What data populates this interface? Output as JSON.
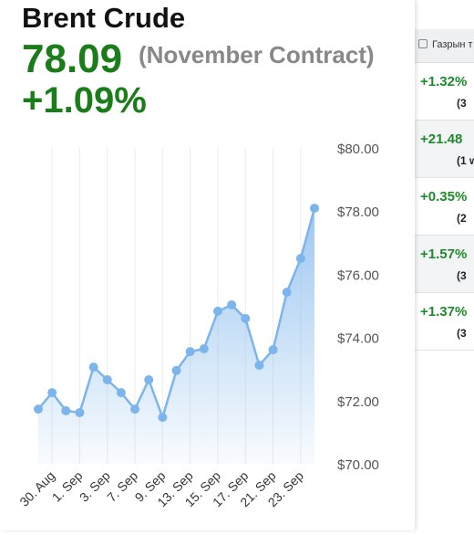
{
  "header": {
    "title": "Brent Crude",
    "price": "78.09",
    "contract": "(November Contract)",
    "change": "+1.09%"
  },
  "chart_data": {
    "type": "area",
    "categories": [
      null,
      "30. Aug",
      null,
      "1. Sep",
      null,
      "3. Sep",
      null,
      "7. Sep",
      null,
      "9. Sep",
      null,
      "13. Sep",
      null,
      "15. Sep",
      null,
      "17. Sep",
      null,
      "21. Sep",
      null,
      "23. Sep",
      null
    ],
    "values": [
      71.73,
      72.25,
      71.68,
      71.62,
      73.06,
      72.66,
      72.25,
      71.73,
      72.66,
      71.47,
      72.95,
      73.55,
      73.64,
      74.83,
      75.03,
      74.6,
      73.12,
      73.61,
      75.43,
      76.5,
      78.09
    ],
    "color": "#7cb5ec",
    "ylim": [
      70,
      80
    ],
    "yticks": [
      {
        "value": 70,
        "label": "$70.00"
      },
      {
        "value": 72,
        "label": "$72.00"
      },
      {
        "value": 74,
        "label": "$74.00"
      },
      {
        "value": 76,
        "label": "$76.00"
      },
      {
        "value": 78,
        "label": "$78.00"
      },
      {
        "value": 80,
        "label": "$80.00"
      }
    ],
    "grid": true
  },
  "side_panel": {
    "tab": "Газрын т",
    "rows": [
      {
        "change": "+1.32%",
        "note": "(3"
      },
      {
        "change": "+21.48",
        "note": "(1 w"
      },
      {
        "change": "+0.35%",
        "note": "(2"
      },
      {
        "change": "+1.57%",
        "note": "(3"
      },
      {
        "change": "+1.37%",
        "note": "(3"
      }
    ]
  }
}
